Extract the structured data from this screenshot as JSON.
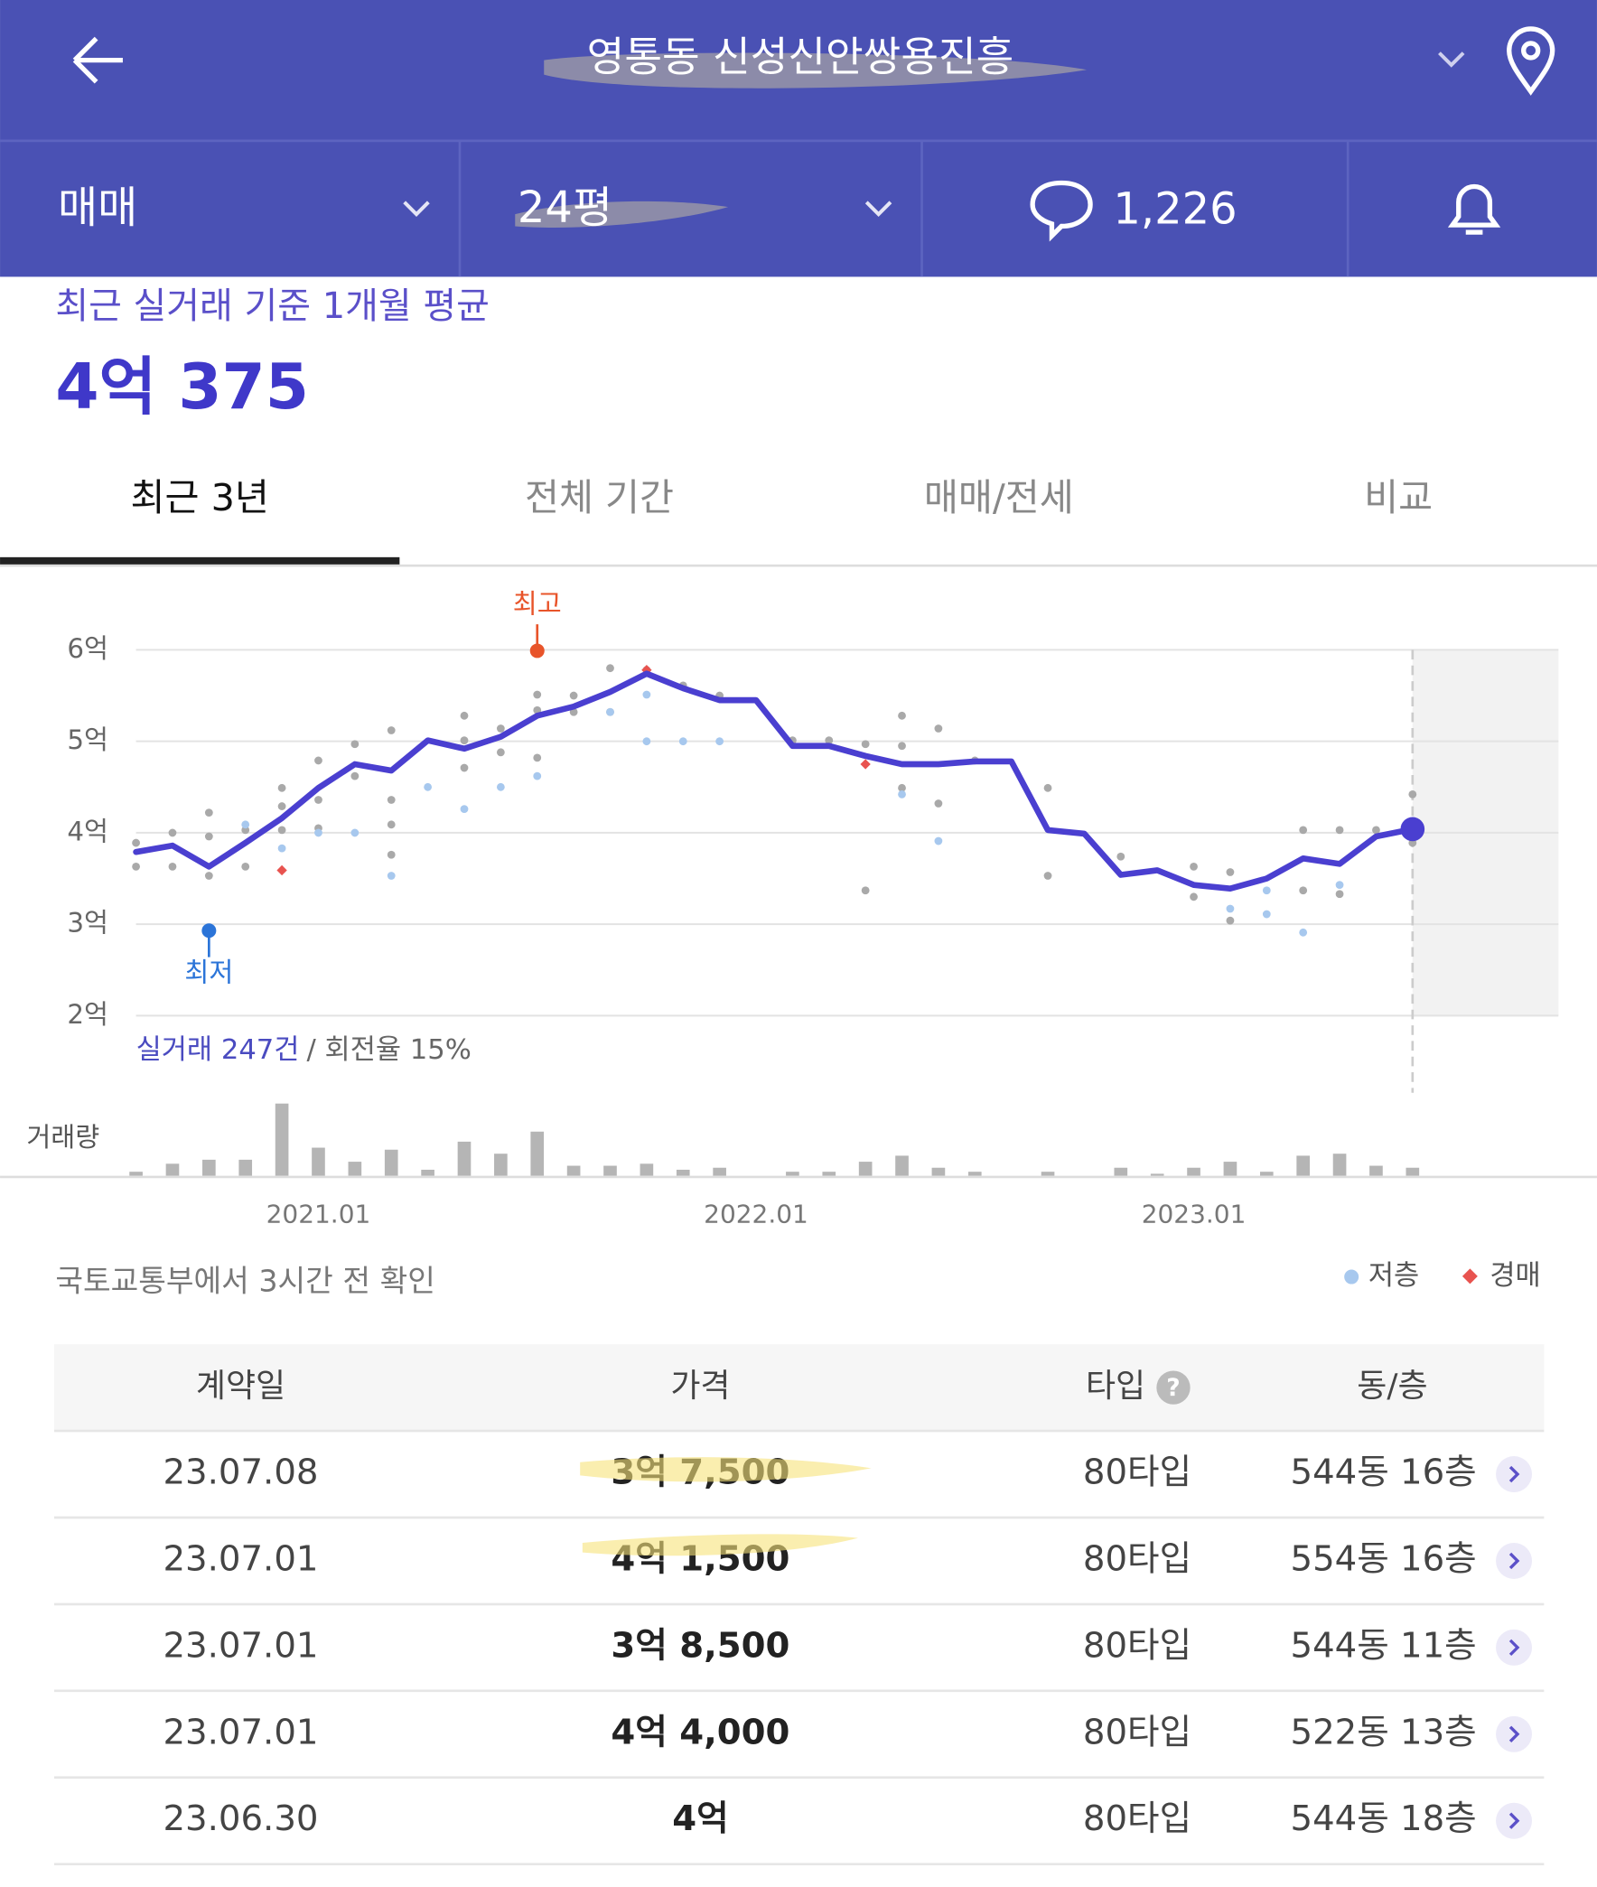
{
  "header": {
    "title": "영통동 신성신안쌍용진흥"
  },
  "toolbar": {
    "trade": "매매",
    "size": "24평",
    "comments": "1,226"
  },
  "summary": {
    "label": "최근 실거래 기준 1개월 평균",
    "price": "4억 375"
  },
  "tabs": [
    "최근 3년",
    "전체 기간",
    "매매/전세",
    "비교"
  ],
  "chart_data": {
    "type": "line",
    "x": [
      "2020.08",
      "2020.09",
      "2020.10",
      "2020.11",
      "2020.12",
      "2021.01",
      "2021.02",
      "2021.03",
      "2021.04",
      "2021.05",
      "2021.06",
      "2021.07",
      "2021.08",
      "2021.09",
      "2021.10",
      "2021.11",
      "2021.12",
      "2022.01",
      "2022.02",
      "2022.03",
      "2022.04",
      "2022.05",
      "2022.06",
      "2022.07",
      "2022.08",
      "2022.09",
      "2022.10",
      "2022.11",
      "2022.12",
      "2023.01",
      "2023.02",
      "2023.03",
      "2023.04",
      "2023.05",
      "2023.06",
      "2023.07"
    ],
    "xlim": [
      "2020.08",
      "2023.11"
    ],
    "xticks": [
      "2021.01",
      "2022.01",
      "2023.01"
    ],
    "ylim": [
      2,
      6
    ],
    "yticks": [
      {
        "value": 2,
        "label": "2억"
      },
      {
        "value": 3,
        "label": "3억"
      },
      {
        "value": 4,
        "label": "4억"
      },
      {
        "value": 5,
        "label": "5억"
      },
      {
        "value": 6,
        "label": "6억"
      }
    ],
    "grid": true,
    "trend": {
      "color": "#4a3fd0",
      "values": [
        3.79,
        3.86,
        3.63,
        3.89,
        4.16,
        4.49,
        4.75,
        4.68,
        5.01,
        4.92,
        5.05,
        5.28,
        5.38,
        5.54,
        5.74,
        5.58,
        5.45,
        5.45,
        4.95,
        4.95,
        4.84,
        4.75,
        4.75,
        4.78,
        4.78,
        4.03,
        3.99,
        3.54,
        3.59,
        3.43,
        3.39,
        3.5,
        3.72,
        3.66,
        3.96,
        4.04
      ]
    },
    "transactions": {
      "color": "#a9a9a9",
      "x": [
        "2020.08",
        "2020.08",
        "2020.09",
        "2020.09",
        "2020.10",
        "2020.10",
        "2020.10",
        "2020.11",
        "2020.11",
        "2020.12",
        "2020.12",
        "2020.12",
        "2021.01",
        "2021.01",
        "2021.01",
        "2021.02",
        "2021.02",
        "2021.03",
        "2021.03",
        "2021.03",
        "2021.03",
        "2021.05",
        "2021.05",
        "2021.05",
        "2021.06",
        "2021.06",
        "2021.07",
        "2021.07",
        "2021.07",
        "2021.08",
        "2021.08",
        "2021.09",
        "2021.09",
        "2021.10",
        "2021.11",
        "2021.12",
        "2022.02",
        "2022.03",
        "2022.04",
        "2022.04",
        "2022.05",
        "2022.05",
        "2022.05",
        "2022.06",
        "2022.06",
        "2022.07",
        "2022.09",
        "2022.09",
        "2022.11",
        "2023.01",
        "2023.01",
        "2023.02",
        "2023.02",
        "2023.04",
        "2023.04",
        "2023.05",
        "2023.05",
        "2023.06",
        "2023.07",
        "2023.07"
      ],
      "values": [
        3.89,
        3.63,
        4.0,
        3.63,
        4.22,
        3.96,
        3.53,
        4.03,
        3.63,
        4.49,
        4.29,
        4.03,
        4.79,
        4.36,
        4.05,
        4.97,
        4.62,
        5.12,
        4.36,
        4.09,
        3.76,
        5.28,
        5.01,
        4.71,
        5.14,
        4.88,
        5.51,
        5.34,
        4.82,
        5.5,
        5.32,
        5.8,
        5.32,
        5.78,
        5.61,
        5.5,
        5.01,
        5.01,
        4.97,
        3.37,
        5.28,
        4.95,
        4.49,
        5.14,
        4.32,
        4.79,
        4.49,
        3.53,
        3.74,
        3.63,
        3.3,
        3.57,
        3.04,
        4.03,
        3.37,
        4.03,
        3.33,
        4.03,
        4.42,
        3.89
      ]
    },
    "low_floor": {
      "name": "저층",
      "color": "#a7c8ee",
      "x": [
        "2020.11",
        "2020.12",
        "2021.01",
        "2021.02",
        "2021.03",
        "2021.04",
        "2021.05",
        "2021.06",
        "2021.07",
        "2021.09",
        "2021.10",
        "2021.10",
        "2021.11",
        "2021.12",
        "2022.05",
        "2022.06",
        "2023.02",
        "2023.03",
        "2023.03",
        "2023.04",
        "2023.05"
      ],
      "values": [
        4.09,
        3.83,
        4.0,
        4.0,
        3.53,
        4.5,
        4.26,
        4.5,
        4.62,
        5.32,
        5.51,
        5.0,
        5.0,
        5.0,
        4.42,
        3.91,
        3.17,
        3.37,
        3.11,
        2.91,
        3.43
      ]
    },
    "auction": {
      "name": "경매",
      "color": "#e8534f",
      "x": [
        "2020.12",
        "2021.10",
        "2022.04"
      ],
      "values": [
        3.59,
        5.78,
        4.75
      ]
    },
    "high": {
      "label": "최고",
      "x": "2021.07",
      "value": 5.99,
      "color": "#e8542a"
    },
    "low": {
      "label": "최저",
      "x": "2020.10",
      "value": 2.93,
      "color": "#2b74d8"
    },
    "stats": {
      "count": "실거래 247건",
      "turnover": "/ 회전율 15%"
    },
    "volume": {
      "label": "거래량",
      "color": "#b5b5b5",
      "values": [
        2,
        6,
        8,
        8,
        36,
        14,
        7,
        13,
        3,
        17,
        11,
        22,
        5,
        5,
        6,
        3,
        4,
        0,
        2,
        2,
        7,
        10,
        4,
        2,
        0,
        2,
        0,
        4,
        1,
        4,
        7,
        2,
        10,
        11,
        5,
        4
      ]
    }
  },
  "source": "국토교통부에서 3시간 전 확인",
  "table": {
    "header": [
      "계약일",
      "가격",
      "타입",
      "동/층"
    ],
    "rows": [
      [
        "23.07.08",
        "3억 7,500",
        "80타입",
        "544동 16층"
      ],
      [
        "23.07.01",
        "4억 1,500",
        "80타입",
        "554동 16층"
      ],
      [
        "23.07.01",
        "3억 8,500",
        "80타입",
        "544동 11층"
      ],
      [
        "23.07.01",
        "4억 4,000",
        "80타입",
        "522동 13층"
      ],
      [
        "23.06.30",
        "4억",
        "80타입",
        "544동 18층"
      ]
    ]
  }
}
